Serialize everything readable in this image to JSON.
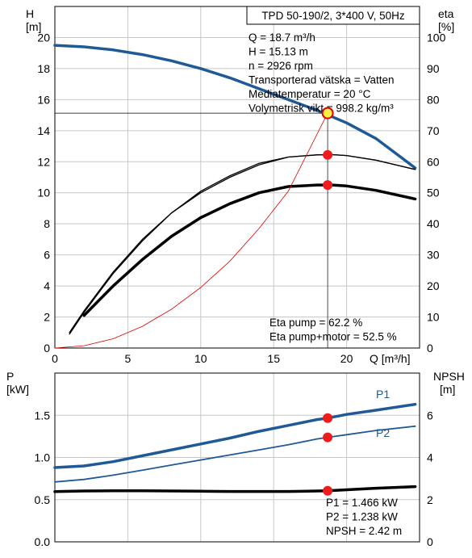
{
  "chart_data": [
    {
      "type": "line",
      "panel": "head-efficiency",
      "title": "TPD 50-190/2, 3*400 V, 50Hz",
      "xlabel": "Q [m³/h]",
      "ylabel_left_name": "H",
      "ylabel_left_unit": "[m]",
      "ylabel_right_name": "eta",
      "ylabel_right_unit": "[%]",
      "xlim": [
        0,
        25
      ],
      "ylim_left": [
        0,
        22
      ],
      "ylim_right": [
        0,
        110
      ],
      "x_ticks": [
        0,
        5,
        10,
        15,
        20
      ],
      "y_left_ticks": [
        0,
        2,
        4,
        6,
        8,
        10,
        12,
        14,
        16,
        18,
        20
      ],
      "y_right_ticks": [
        0,
        10,
        20,
        30,
        40,
        50,
        60,
        70,
        80,
        90,
        100
      ],
      "grid": true,
      "info_lines": [
        "Q = 18.7 m³/h",
        "H = 15.13 m",
        "n = 2926 rpm",
        "Transporterad vätska = Vatten",
        "Mediatemperatur = 20 °C",
        "Volymetrisk vikt = 998.2 kg/m³"
      ],
      "eta_lines": [
        "Eta pump = 62.2 %",
        "Eta pump+motor = 52.5 %"
      ],
      "series": [
        {
          "axis": "left",
          "color": "#1f5a96",
          "x": [
            0,
            2,
            4,
            6,
            8,
            10,
            12,
            14,
            16,
            18,
            20,
            22,
            24.7
          ],
          "values": [
            19.5,
            19.4,
            19.2,
            18.9,
            18.5,
            18.0,
            17.4,
            16.7,
            16.0,
            15.3,
            14.5,
            13.5,
            11.6
          ]
        },
        {
          "axis": "right",
          "color": "#000000",
          "x": [
            1.0,
            2,
            4,
            6,
            8,
            10,
            12,
            14,
            16,
            18,
            19,
            20,
            22,
            24.7
          ],
          "values": [
            4.5,
            11.5,
            24.0,
            34.5,
            43.5,
            50.5,
            55.5,
            59.5,
            61.5,
            62.2,
            62.3,
            62.0,
            60.5,
            57.5
          ]
        },
        {
          "axis": "right",
          "color": "#000000",
          "x": [
            2,
            4,
            6,
            8,
            10,
            12,
            14,
            16,
            18,
            19,
            20,
            22,
            24.7
          ],
          "values": [
            10.5,
            20.0,
            28.5,
            36.0,
            42.0,
            46.5,
            50.0,
            52.0,
            52.5,
            52.5,
            52.2,
            50.8,
            48.0
          ]
        },
        {
          "axis": "left",
          "color": "#000000",
          "x": [
            1.0,
            2,
            4,
            6,
            8,
            10,
            12,
            14,
            16,
            18,
            19,
            20,
            22,
            24.7
          ],
          "values": [
            1.0,
            2.4,
            4.9,
            7.0,
            8.7,
            10.0,
            11.0,
            11.8,
            12.3,
            12.45,
            12.45,
            12.4,
            12.1,
            11.5
          ]
        },
        {
          "axis": "left",
          "color": "#e00000",
          "x": [
            0,
            2,
            4,
            6,
            8,
            10,
            12,
            14,
            16,
            18.7
          ],
          "values": [
            0,
            0.15,
            0.6,
            1.4,
            2.5,
            3.9,
            5.6,
            7.7,
            10.1,
            15.13
          ]
        }
      ],
      "operating_points": [
        {
          "x": 18.7,
          "y": 15.13,
          "axis": "left",
          "style": "yellow"
        },
        {
          "x": 18.7,
          "y": 62.2,
          "axis": "right",
          "style": "red"
        },
        {
          "x": 18.7,
          "y": 52.5,
          "axis": "right",
          "style": "red"
        }
      ]
    },
    {
      "type": "line",
      "panel": "power-npsh",
      "xlim": [
        0,
        25
      ],
      "ylabel_left_name": "P",
      "ylabel_left_unit": "[kW]",
      "ylabel_right_name": "NPSH",
      "ylabel_right_unit": "[m]",
      "ylim_left": [
        0,
        2
      ],
      "ylim_right": [
        0,
        8
      ],
      "y_left_ticks": [
        0.0,
        0.5,
        1.0,
        1.5
      ],
      "y_left_tick_labels": [
        "0.0",
        "0.5",
        "1.0",
        "1.5"
      ],
      "y_right_ticks": [
        0,
        2,
        4,
        6
      ],
      "grid": true,
      "value_lines": [
        "P1 = 1.466 kW",
        "P2 = 1.238 kW",
        "NPSH = 2.42 m"
      ],
      "series": [
        {
          "name": "P1",
          "axis": "left",
          "color": "#1f5a96",
          "x": [
            0,
            2,
            4,
            6,
            8,
            10,
            12,
            14,
            16,
            18,
            18.7,
            20,
            22,
            24.7
          ],
          "values": [
            0.88,
            0.9,
            0.95,
            1.02,
            1.09,
            1.16,
            1.23,
            1.31,
            1.38,
            1.45,
            1.466,
            1.51,
            1.56,
            1.63
          ]
        },
        {
          "name": "P2",
          "axis": "left",
          "color": "#1f5a96",
          "x": [
            0,
            2,
            4,
            6,
            8,
            10,
            12,
            14,
            16,
            18,
            18.7,
            20,
            22,
            24.7
          ],
          "values": [
            0.71,
            0.74,
            0.79,
            0.85,
            0.91,
            0.97,
            1.03,
            1.09,
            1.15,
            1.22,
            1.238,
            1.27,
            1.32,
            1.37
          ]
        },
        {
          "axis": "right",
          "color": "#000000",
          "x": [
            0,
            2,
            4,
            6,
            8,
            10,
            12,
            14,
            16,
            18,
            18.7,
            20,
            22,
            24.7
          ],
          "values": [
            2.38,
            2.41,
            2.42,
            2.42,
            2.41,
            2.4,
            2.39,
            2.39,
            2.39,
            2.41,
            2.42,
            2.47,
            2.54,
            2.62
          ]
        }
      ],
      "operating_points": [
        {
          "x": 18.7,
          "y": 1.466,
          "axis": "left",
          "style": "red"
        },
        {
          "x": 18.7,
          "y": 1.238,
          "axis": "left",
          "style": "red"
        },
        {
          "x": 18.7,
          "y": 2.42,
          "axis": "right",
          "style": "red"
        }
      ]
    }
  ]
}
